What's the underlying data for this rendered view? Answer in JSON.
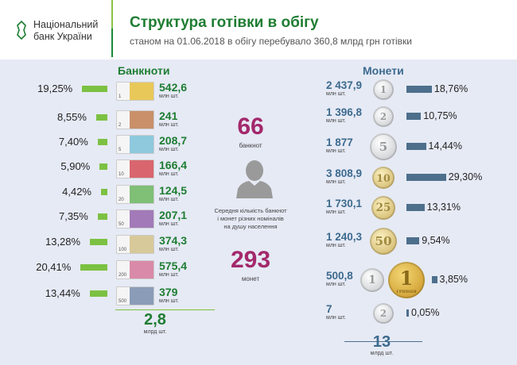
{
  "header": {
    "logo_line1": "Національний",
    "logo_line2": "банк України",
    "title": "Структура готівки в обігу",
    "subtitle": "станом на 01.06.2018 в обігу перебувало 360,8 млрд грн готівки"
  },
  "banknotes": {
    "title": "Банкноти",
    "unit": "млн шт.",
    "total": "2,8",
    "total_unit": "млрд шт.",
    "items": [
      {
        "denomination": "1",
        "percent": "19,25%",
        "pct": 19.25,
        "count": "542,6",
        "color": "#e9c85a"
      },
      {
        "denomination": "2",
        "percent": "8,55%",
        "pct": 8.55,
        "count": "241",
        "color": "#c9906a"
      },
      {
        "denomination": "5",
        "percent": "7,40%",
        "pct": 7.4,
        "count": "208,7",
        "color": "#8ec9dd"
      },
      {
        "denomination": "10",
        "percent": "5,90%",
        "pct": 5.9,
        "count": "166,4",
        "color": "#d9666e"
      },
      {
        "denomination": "20",
        "percent": "4,42%",
        "pct": 4.42,
        "count": "124,5",
        "color": "#7fbf76"
      },
      {
        "denomination": "50",
        "percent": "7,35%",
        "pct": 7.35,
        "count": "207,1",
        "color": "#a27ab8"
      },
      {
        "denomination": "100",
        "percent": "13,28%",
        "pct": 13.28,
        "count": "374,3",
        "color": "#d7c99a"
      },
      {
        "denomination": "200",
        "percent": "20,41%",
        "pct": 20.41,
        "count": "575,4",
        "color": "#d98aa8"
      },
      {
        "denomination": "500",
        "percent": "13,44%",
        "pct": 13.44,
        "count": "379",
        "color": "#8a9cb8"
      }
    ]
  },
  "center": {
    "notes_count": "66",
    "notes_label": "банкнот",
    "description": [
      "Середня кількість банкнот",
      "і монет різних номіналів",
      "на душу населення"
    ],
    "coins_count": "293",
    "coins_label": "монет"
  },
  "coins": {
    "title": "Монети",
    "unit": "млн шт.",
    "total": "13",
    "total_unit": "млрд шт.",
    "items": [
      {
        "denomination": "1",
        "percent": "18,76%",
        "pct": 18.76,
        "count": "2 437,9",
        "metal": "silver"
      },
      {
        "denomination": "2",
        "percent": "10,75%",
        "pct": 10.75,
        "count": "1 396,8",
        "metal": "silver"
      },
      {
        "denomination": "5",
        "percent": "14,44%",
        "pct": 14.44,
        "count": "1 877",
        "metal": "silver"
      },
      {
        "denomination": "10",
        "percent": "29,30%",
        "pct": 29.3,
        "count": "3 808,9",
        "metal": "gold"
      },
      {
        "denomination": "25",
        "percent": "13,31%",
        "pct": 13.31,
        "count": "1 730,1",
        "metal": "gold"
      },
      {
        "denomination": "50",
        "percent": "9,54%",
        "pct": 9.54,
        "count": "1 240,3",
        "metal": "gold"
      },
      {
        "denomination": "1",
        "percent": "3,85%",
        "pct": 3.85,
        "count": "500,8",
        "metal": "silver",
        "extra_denomination": "1",
        "extra_label": "ГРИВНЯ"
      },
      {
        "denomination": "2",
        "percent": "0,05%",
        "pct": 0.05,
        "count": "7",
        "metal": "silver"
      }
    ]
  },
  "colors": {
    "green": "#1e7d32",
    "bar_green": "#7cc142",
    "blue": "#3c6a8e",
    "bar_blue": "#4d6f8c",
    "magenta": "#a3286c",
    "background": "#e6eaf5"
  }
}
